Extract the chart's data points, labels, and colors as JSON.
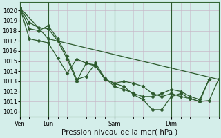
{
  "background_color": "#d4eeea",
  "grid_color": "#c8b8c8",
  "line_color": "#2d5a2d",
  "marker": "D",
  "markersize": 2.5,
  "linewidth": 0.9,
  "ylim": [
    1009.5,
    1020.8
  ],
  "yticks": [
    1010,
    1011,
    1012,
    1013,
    1014,
    1015,
    1016,
    1017,
    1018,
    1019,
    1020
  ],
  "xlabel": "Pression niveau de la mer( hPa )",
  "xlabel_fontsize": 7.5,
  "tick_fontsize": 6.0,
  "day_labels": [
    "Ven",
    "Lun",
    "Sam",
    "Dim"
  ],
  "day_positions": [
    0,
    3,
    10,
    16
  ],
  "xlim": [
    0,
    21
  ],
  "series": [
    {
      "x": [
        0,
        1,
        2,
        3,
        4,
        5,
        6,
        7,
        8,
        9,
        10,
        11,
        12,
        13,
        14,
        15,
        16,
        17,
        18,
        19,
        20,
        21
      ],
      "y": [
        1020.3,
        1017.2,
        1017.0,
        1016.8,
        1015.3,
        1013.8,
        1015.2,
        1014.8,
        1014.6,
        1013.2,
        1012.8,
        1012.5,
        1011.7,
        1011.2,
        1010.2,
        1010.2,
        1011.5,
        1011.8,
        1011.3,
        1011.0,
        1011.1,
        1013.2
      ]
    },
    {
      "x": [
        0,
        1,
        2,
        3,
        4,
        5,
        6,
        7,
        8,
        9,
        10,
        11,
        12,
        13,
        14,
        15,
        16,
        17,
        18,
        19,
        20
      ],
      "y": [
        1020.3,
        1018.8,
        1018.3,
        1018.2,
        1017.0,
        1015.2,
        1013.0,
        1014.8,
        1014.5,
        1013.2,
        1012.8,
        1013.0,
        1012.8,
        1012.5,
        1011.8,
        1011.5,
        1011.8,
        1011.5,
        1011.3,
        1011.0,
        1013.2
      ]
    },
    {
      "x": [
        0,
        1,
        2,
        3,
        4,
        5,
        6,
        7,
        8,
        9,
        10,
        11,
        12,
        13,
        14,
        15,
        16,
        17,
        18,
        19,
        20
      ],
      "y": [
        1020.3,
        1018.2,
        1018.0,
        1018.5,
        1017.2,
        1015.5,
        1013.2,
        1013.5,
        1014.8,
        1013.3,
        1012.5,
        1012.2,
        1011.8,
        1011.5,
        1011.5,
        1011.8,
        1012.2,
        1012.0,
        1011.5,
        1011.2,
        1013.2
      ]
    },
    {
      "x": [
        0,
        3,
        21
      ],
      "y": [
        1020.3,
        1017.2,
        1013.2
      ]
    }
  ]
}
